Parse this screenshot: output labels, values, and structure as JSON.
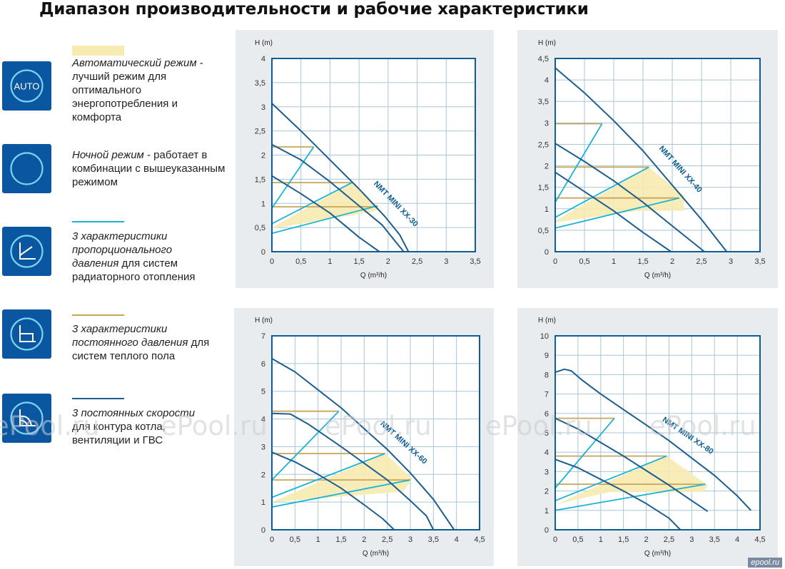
{
  "page": {
    "title": "Диапазон производительности и рабочие характеристики",
    "watermark": "ePool.ru",
    "footer_logo": "epool.ru"
  },
  "legend": [
    {
      "icon": "auto-icon",
      "icon_label": "AUTO",
      "swatch": "fill",
      "color": "#f7ebb0",
      "lead": "Автоматический режим",
      "rest": " - лучший режим для оптимального энергопотребления и комфорта"
    },
    {
      "icon": "night-mode-icon",
      "swatch": "none",
      "color": "",
      "lead": "Ночной режим",
      "rest": " - работает в комбинации с вышеуказанным режимом"
    },
    {
      "icon": "proportional-pressure-icon",
      "swatch": "line",
      "color": "#1ab3d6",
      "lead": "3 характеристики пропорционального давления",
      "rest": " для систем радиаторного отопления"
    },
    {
      "icon": "constant-pressure-icon",
      "swatch": "line",
      "color": "#c9a55a",
      "lead": "3 характеристики постоянного давления",
      "rest": " для систем теплого пола"
    },
    {
      "icon": "constant-speed-icon",
      "swatch": "line",
      "color": "#1e5d8f",
      "lead": "3 постоянных скорости",
      "rest": " для контура котла, вентиляции и ГВС"
    }
  ],
  "colors": {
    "speed": "#1e5d8f",
    "proportional": "#1ab3d6",
    "constant": "#c9a55a",
    "auto_fill": "#f7ebb0",
    "frame": "#0d5c92",
    "grid": "#a8c6d8",
    "panel_bg": "#e9ecee"
  },
  "chart_data": [
    {
      "type": "line",
      "title": "NMT MINI XX-30",
      "xlabel": "Q (m³/h)",
      "ylabel": "H (m)",
      "xlim": [
        0,
        3.5
      ],
      "ylim": [
        0,
        4
      ],
      "xticks": [
        "0",
        "0,5",
        "1",
        "1,5",
        "2",
        "2,5",
        "3",
        "3,5"
      ],
      "yticks": [
        "0",
        "0,5",
        "1",
        "1,5",
        "2",
        "2,5",
        "3",
        "3,5",
        "4"
      ],
      "speed_curves": [
        {
          "name": "I",
          "points": [
            [
              0,
              1.57
            ],
            [
              0.5,
              1.2
            ],
            [
              1,
              0.8
            ],
            [
              1.5,
              0.3
            ],
            [
              1.85,
              0
            ]
          ]
        },
        {
          "name": "II",
          "points": [
            [
              0,
              2.22
            ],
            [
              0.5,
              1.9
            ],
            [
              1,
              1.45
            ],
            [
              1.5,
              0.95
            ],
            [
              1.9,
              0.55
            ],
            [
              2.1,
              0.25
            ],
            [
              2.27,
              0
            ]
          ]
        },
        {
          "name": "III",
          "points": [
            [
              0,
              3.07
            ],
            [
              0.5,
              2.5
            ],
            [
              1,
              1.9
            ],
            [
              1.5,
              1.3
            ],
            [
              1.95,
              0.72
            ],
            [
              2.2,
              0.35
            ],
            [
              2.35,
              0
            ]
          ]
        }
      ],
      "proportional_lines": [
        {
          "name": "PP1",
          "points": [
            [
              0,
              0.38
            ],
            [
              1.82,
              0.95
            ]
          ]
        },
        {
          "name": "PP2",
          "points": [
            [
              0,
              0.58
            ],
            [
              1.38,
              1.43
            ]
          ]
        },
        {
          "name": "PP3",
          "points": [
            [
              0,
              0.9
            ],
            [
              0.72,
              2.17
            ]
          ]
        }
      ],
      "constant_lines": [
        {
          "name": "CP1",
          "points": [
            [
              0,
              0.93
            ],
            [
              1.82,
              0.93
            ]
          ]
        },
        {
          "name": "CP2",
          "points": [
            [
              0,
              1.43
            ],
            [
              1.38,
              1.43
            ]
          ]
        },
        {
          "name": "CP3",
          "points": [
            [
              0,
              2.17
            ],
            [
              0.72,
              2.17
            ]
          ]
        }
      ],
      "auto_region": [
        [
          0,
          0.5
        ],
        [
          1.38,
          1.43
        ],
        [
          1.85,
          0.9
        ],
        [
          1.75,
          0.83
        ],
        [
          0,
          0.48
        ]
      ]
    },
    {
      "type": "line",
      "title": "NMT MINI XX-40",
      "xlabel": "Q (m³/h)",
      "ylabel": "H (m)",
      "xlim": [
        0,
        3.5
      ],
      "ylim": [
        0,
        4.5
      ],
      "xticks": [
        "0",
        "0,5",
        "1",
        "1,5",
        "2",
        "2,5",
        "3",
        "3,5"
      ],
      "yticks": [
        "0",
        "0,5",
        "1",
        "1,5",
        "2",
        "2,5",
        "3",
        "3,5",
        "4",
        "4,5"
      ],
      "speed_curves": [
        {
          "name": "I",
          "points": [
            [
              0,
              1.85
            ],
            [
              0.5,
              1.4
            ],
            [
              1,
              0.95
            ],
            [
              1.5,
              0.45
            ],
            [
              1.98,
              0
            ]
          ]
        },
        {
          "name": "II",
          "points": [
            [
              0,
              2.52
            ],
            [
              0.5,
              2.1
            ],
            [
              1,
              1.65
            ],
            [
              1.5,
              1.15
            ],
            [
              2,
              0.6
            ],
            [
              2.55,
              0
            ]
          ]
        },
        {
          "name": "III",
          "points": [
            [
              0,
              4.28
            ],
            [
              0.5,
              3.7
            ],
            [
              1,
              3.05
            ],
            [
              1.5,
              2.35
            ],
            [
              2,
              1.55
            ],
            [
              2.5,
              0.75
            ],
            [
              2.93,
              0
            ]
          ]
        }
      ],
      "proportional_lines": [
        {
          "name": "PP1",
          "points": [
            [
              0,
              0.55
            ],
            [
              2.12,
              1.25
            ]
          ]
        },
        {
          "name": "PP2",
          "points": [
            [
              0,
              0.8
            ],
            [
              1.6,
              1.97
            ]
          ]
        },
        {
          "name": "PP3",
          "points": [
            [
              0,
              1.15
            ],
            [
              0.8,
              2.98
            ]
          ]
        }
      ],
      "constant_lines": [
        {
          "name": "CP1",
          "points": [
            [
              0,
              1.25
            ],
            [
              2.12,
              1.25
            ]
          ]
        },
        {
          "name": "CP2",
          "points": [
            [
              0,
              1.97
            ],
            [
              1.6,
              1.97
            ]
          ]
        },
        {
          "name": "CP3",
          "points": [
            [
              0,
              2.98
            ],
            [
              0.8,
              2.98
            ]
          ]
        }
      ],
      "auto_region": [
        [
          0,
          0.72
        ],
        [
          1.6,
          1.97
        ],
        [
          2.2,
          1.3
        ],
        [
          2.2,
          0.95
        ],
        [
          1.4,
          0.95
        ],
        [
          0,
          0.68
        ]
      ]
    },
    {
      "type": "line",
      "title": "NMT MINI XX-60",
      "xlabel": "Q (m³/h)",
      "ylabel": "H (m)",
      "xlim": [
        0,
        4.5
      ],
      "ylim": [
        0,
        7
      ],
      "xticks": [
        "0",
        "0,5",
        "1",
        "1,5",
        "2",
        "2,5",
        "3",
        "3,5",
        "4",
        "4,5"
      ],
      "yticks": [
        "0",
        "1",
        "2",
        "3",
        "4",
        "5",
        "6",
        "7"
      ],
      "speed_curves": [
        {
          "name": "I",
          "points": [
            [
              0,
              2.8
            ],
            [
              0.5,
              2.45
            ],
            [
              1,
              2.0
            ],
            [
              1.5,
              1.5
            ],
            [
              2,
              0.9
            ],
            [
              2.4,
              0.4
            ],
            [
              2.65,
              0
            ]
          ]
        },
        {
          "name": "II",
          "points": [
            [
              0,
              4.2
            ],
            [
              0.4,
              4.18
            ],
            [
              0.8,
              3.8
            ],
            [
              1.5,
              3.0
            ],
            [
              2,
              2.4
            ],
            [
              2.5,
              1.8
            ],
            [
              3,
              1.05
            ],
            [
              3.35,
              0.5
            ],
            [
              3.5,
              0
            ]
          ]
        },
        {
          "name": "III",
          "points": [
            [
              0,
              6.18
            ],
            [
              0.5,
              5.7
            ],
            [
              1,
              5.05
            ],
            [
              1.5,
              4.4
            ],
            [
              2,
              3.65
            ],
            [
              2.5,
              2.9
            ],
            [
              3,
              2.05
            ],
            [
              3.5,
              1.1
            ],
            [
              3.95,
              0
            ]
          ]
        }
      ],
      "proportional_lines": [
        {
          "name": "PP1",
          "points": [
            [
              0,
              0.82
            ],
            [
              3.0,
              1.8
            ]
          ]
        },
        {
          "name": "PP2",
          "points": [
            [
              0,
              1.17
            ],
            [
              2.45,
              2.75
            ]
          ]
        },
        {
          "name": "PP3",
          "points": [
            [
              0,
              1.8
            ],
            [
              1.45,
              4.28
            ]
          ]
        }
      ],
      "constant_lines": [
        {
          "name": "CP1",
          "points": [
            [
              0,
              1.8
            ],
            [
              3.0,
              1.8
            ]
          ]
        },
        {
          "name": "CP2",
          "points": [
            [
              0,
              2.75
            ],
            [
              2.45,
              2.75
            ]
          ]
        },
        {
          "name": "CP3",
          "points": [
            [
              0,
              4.28
            ],
            [
              1.45,
              4.28
            ]
          ]
        }
      ],
      "auto_region": [
        [
          0,
          1.0
        ],
        [
          2.45,
          2.75
        ],
        [
          3.05,
          1.85
        ],
        [
          2.85,
          1.38
        ],
        [
          0,
          1.0
        ]
      ]
    },
    {
      "type": "line",
      "title": "NMT MINI XX-80",
      "xlabel": "Q (m³/h)",
      "ylabel": "H (m)",
      "xlim": [
        0,
        4.5
      ],
      "ylim": [
        0,
        10
      ],
      "xticks": [
        "0",
        "0,5",
        "1",
        "1,5",
        "2",
        "2,5",
        "3",
        "3,5",
        "4",
        "4,5"
      ],
      "yticks": [
        "0",
        "1",
        "2",
        "3",
        "4",
        "5",
        "6",
        "7",
        "8",
        "9",
        "10"
      ],
      "speed_curves": [
        {
          "name": "I",
          "points": [
            [
              0,
              3.63
            ],
            [
              0.5,
              3.2
            ],
            [
              1,
              2.6
            ],
            [
              1.5,
              2.0
            ],
            [
              2,
              1.35
            ],
            [
              2.5,
              0.6
            ],
            [
              2.75,
              0
            ]
          ]
        },
        {
          "name": "II",
          "points": [
            [
              0,
              5.75
            ],
            [
              0.5,
              5.2
            ],
            [
              1,
              4.5
            ],
            [
              1.5,
              3.8
            ],
            [
              2,
              3.05
            ],
            [
              2.5,
              2.3
            ],
            [
              3,
              1.5
            ],
            [
              3.35,
              0.95
            ]
          ]
        },
        {
          "name": "III",
          "points": [
            [
              0,
              8.12
            ],
            [
              0.2,
              8.28
            ],
            [
              0.35,
              8.2
            ],
            [
              0.6,
              7.7
            ],
            [
              1,
              7.0
            ],
            [
              1.5,
              6.2
            ],
            [
              2,
              5.4
            ],
            [
              2.5,
              4.6
            ],
            [
              3,
              3.7
            ],
            [
              3.5,
              2.8
            ],
            [
              4,
              1.75
            ],
            [
              4.3,
              1.0
            ]
          ]
        }
      ],
      "proportional_lines": [
        {
          "name": "PP1",
          "points": [
            [
              0,
              1.0
            ],
            [
              3.3,
              2.35
            ]
          ]
        },
        {
          "name": "PP2",
          "points": [
            [
              0,
              1.5
            ],
            [
              2.45,
              3.8
            ]
          ]
        },
        {
          "name": "PP3",
          "points": [
            [
              0,
              2.15
            ],
            [
              1.3,
              5.75
            ]
          ]
        }
      ],
      "constant_lines": [
        {
          "name": "CP1",
          "points": [
            [
              0,
              2.35
            ],
            [
              3.3,
              2.35
            ]
          ]
        },
        {
          "name": "CP2",
          "points": [
            [
              0,
              3.8
            ],
            [
              2.45,
              3.8
            ]
          ]
        },
        {
          "name": "CP3",
          "points": [
            [
              0,
              5.75
            ],
            [
              1.3,
              5.75
            ]
          ]
        }
      ],
      "auto_region": [
        [
          0,
          1.3
        ],
        [
          2.45,
          3.8
        ],
        [
          3.35,
          2.3
        ],
        [
          3.25,
          1.95
        ],
        [
          1.2,
          1.95
        ],
        [
          0,
          1.3
        ]
      ]
    }
  ]
}
